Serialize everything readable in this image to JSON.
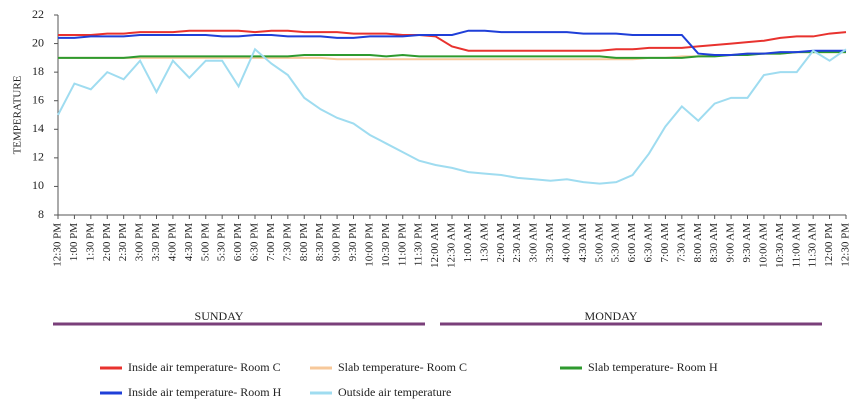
{
  "chart_data": {
    "type": "line",
    "y_label": "TEMPERATURE",
    "categories": [
      "12:30 PM",
      "1:00 PM",
      "1:30 PM",
      "2:00 PM",
      "2:30 PM",
      "3:00 PM",
      "3:30 PM",
      "4:00 PM",
      "4:30 PM",
      "5:00 PM",
      "5:30 PM",
      "6:00 PM",
      "6:30 PM",
      "7:00 PM",
      "7:30 PM",
      "8:00 PM",
      "8:30 PM",
      "9:00 PM",
      "9:30 PM",
      "10:00 PM",
      "10:30 PM",
      "11:00 PM",
      "11:30 PM",
      "12:00 AM",
      "12:30 AM",
      "1:00 AM",
      "1:30 AM",
      "2:00 AM",
      "2:30 AM",
      "3:00 AM",
      "3:30 AM",
      "4:00 AM",
      "4:30 AM",
      "5:00 AM",
      "5:30 AM",
      "6:00 AM",
      "6:30 AM",
      "7:00 AM",
      "7:30 AM",
      "8:00 AM",
      "8:30 AM",
      "9:00 AM",
      "9:30 AM",
      "10:00 AM",
      "10:30 AM",
      "11:00 AM",
      "11:30 AM",
      "12:00 PM",
      "12:30 PM"
    ],
    "days": [
      "SUNDAY",
      "MONDAY"
    ],
    "ylim": [
      8,
      22
    ],
    "yticks": [
      8,
      10,
      12,
      14,
      16,
      18,
      20,
      22
    ],
    "grid": false,
    "series": [
      {
        "name": "Inside air temperature- Room C",
        "color": "#e8322e",
        "values": [
          20.6,
          20.6,
          20.6,
          20.7,
          20.7,
          20.8,
          20.8,
          20.8,
          20.9,
          20.9,
          20.9,
          20.9,
          20.8,
          20.9,
          20.9,
          20.8,
          20.8,
          20.8,
          20.7,
          20.7,
          20.7,
          20.6,
          20.6,
          20.5,
          19.8,
          19.5,
          19.5,
          19.5,
          19.5,
          19.5,
          19.5,
          19.5,
          19.5,
          19.5,
          19.6,
          19.6,
          19.7,
          19.7,
          19.7,
          19.8,
          19.9,
          20.0,
          20.1,
          20.2,
          20.4,
          20.5,
          20.5,
          20.7,
          20.8
        ]
      },
      {
        "name": "Slab temperature- Room C",
        "color": "#f7c89a",
        "values": [
          19.0,
          19.0,
          19.0,
          19.0,
          19.0,
          19.0,
          19.0,
          19.0,
          19.0,
          19.0,
          19.0,
          19.0,
          19.0,
          19.0,
          19.0,
          19.0,
          19.0,
          18.9,
          18.9,
          18.9,
          18.9,
          18.9,
          18.9,
          18.9,
          18.9,
          18.9,
          18.9,
          18.9,
          18.9,
          18.9,
          18.9,
          18.9,
          18.9,
          18.9,
          18.9,
          18.9,
          19.0,
          19.0,
          19.1,
          19.1,
          19.2,
          19.2,
          19.3,
          19.3,
          19.3,
          19.4,
          19.4,
          19.4,
          19.4
        ]
      },
      {
        "name": "Slab temperature- Room H",
        "color": "#2e9a2e",
        "values": [
          19.0,
          19.0,
          19.0,
          19.0,
          19.0,
          19.1,
          19.1,
          19.1,
          19.1,
          19.1,
          19.1,
          19.1,
          19.1,
          19.1,
          19.1,
          19.2,
          19.2,
          19.2,
          19.2,
          19.2,
          19.1,
          19.2,
          19.1,
          19.1,
          19.1,
          19.1,
          19.1,
          19.1,
          19.1,
          19.1,
          19.1,
          19.1,
          19.1,
          19.1,
          19.0,
          19.0,
          19.0,
          19.0,
          19.0,
          19.1,
          19.1,
          19.2,
          19.2,
          19.3,
          19.3,
          19.4,
          19.4,
          19.4,
          19.4
        ]
      },
      {
        "name": "Inside air temperature- Room H",
        "color": "#1f3fd8",
        "values": [
          20.4,
          20.4,
          20.5,
          20.5,
          20.5,
          20.6,
          20.6,
          20.6,
          20.6,
          20.6,
          20.5,
          20.5,
          20.6,
          20.6,
          20.5,
          20.5,
          20.5,
          20.4,
          20.4,
          20.5,
          20.5,
          20.5,
          20.6,
          20.6,
          20.6,
          20.9,
          20.9,
          20.8,
          20.8,
          20.8,
          20.8,
          20.8,
          20.7,
          20.7,
          20.7,
          20.6,
          20.6,
          20.6,
          20.6,
          19.3,
          19.2,
          19.2,
          19.3,
          19.3,
          19.4,
          19.4,
          19.5,
          19.5,
          19.5
        ]
      },
      {
        "name": "Outside air temperature",
        "color": "#9fdcf0",
        "values": [
          15.0,
          17.2,
          16.8,
          18.0,
          17.5,
          18.8,
          16.6,
          18.8,
          17.6,
          18.8,
          18.8,
          17.0,
          19.6,
          18.6,
          17.8,
          16.2,
          15.4,
          14.8,
          14.4,
          13.6,
          13.0,
          12.4,
          11.8,
          11.5,
          11.3,
          11.0,
          10.9,
          10.8,
          10.6,
          10.5,
          10.4,
          10.5,
          10.3,
          10.2,
          10.3,
          10.8,
          12.3,
          14.2,
          15.6,
          14.6,
          15.8,
          16.2,
          16.2,
          17.8,
          18.0,
          18.0,
          19.5,
          18.8,
          19.6
        ]
      }
    ]
  }
}
